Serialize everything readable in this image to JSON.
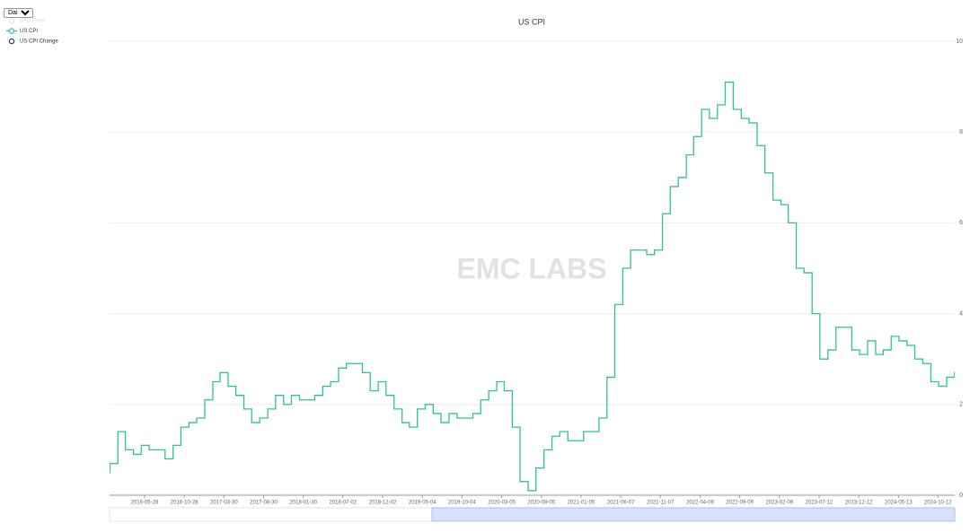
{
  "chart_data": {
    "type": "line",
    "step": true,
    "title": "US CPI",
    "watermark": "EMC LABS",
    "interval": "Daily",
    "legend": [
      {
        "name": "BTC Price",
        "color": "#cccccc",
        "active": false
      },
      {
        "name": "US CPI",
        "color": "#2ec48f",
        "active": true
      },
      {
        "name": "US CPI Change",
        "color": "#1f3a6e",
        "active": true
      }
    ],
    "x": [
      "2015-12-15",
      "2016-01-15",
      "2016-02-15",
      "2016-03-15",
      "2016-04-15",
      "2016-05-15",
      "2016-06-15",
      "2016-07-15",
      "2016-08-15",
      "2016-09-15",
      "2016-10-15",
      "2016-11-15",
      "2016-12-15",
      "2017-01-15",
      "2017-02-15",
      "2017-03-15",
      "2017-04-15",
      "2017-05-15",
      "2017-06-15",
      "2017-07-15",
      "2017-08-15",
      "2017-09-15",
      "2017-10-15",
      "2017-11-15",
      "2017-12-15",
      "2018-01-15",
      "2018-02-15",
      "2018-03-15",
      "2018-04-15",
      "2018-05-15",
      "2018-06-15",
      "2018-07-15",
      "2018-08-15",
      "2018-09-15",
      "2018-10-15",
      "2018-11-15",
      "2018-12-15",
      "2019-01-15",
      "2019-02-15",
      "2019-03-15",
      "2019-04-15",
      "2019-05-15",
      "2019-06-15",
      "2019-07-15",
      "2019-08-15",
      "2019-09-15",
      "2019-10-15",
      "2019-11-15",
      "2019-12-15",
      "2020-01-15",
      "2020-02-15",
      "2020-03-15",
      "2020-04-15",
      "2020-05-15",
      "2020-06-15",
      "2020-07-15",
      "2020-08-15",
      "2020-09-15",
      "2020-10-15",
      "2020-11-15",
      "2020-12-15",
      "2021-01-15",
      "2021-02-15",
      "2021-03-15",
      "2021-04-15",
      "2021-05-15",
      "2021-06-15",
      "2021-07-15",
      "2021-08-15",
      "2021-09-15",
      "2021-10-15",
      "2021-11-15",
      "2021-12-15",
      "2022-01-15",
      "2022-02-15",
      "2022-03-15",
      "2022-04-15",
      "2022-05-15",
      "2022-06-15",
      "2022-07-15",
      "2022-08-15",
      "2022-09-15",
      "2022-10-15",
      "2022-11-15",
      "2022-12-15",
      "2023-01-15",
      "2023-02-15",
      "2023-03-15",
      "2023-04-15",
      "2023-05-15",
      "2023-06-15",
      "2023-07-15",
      "2023-08-15",
      "2023-09-15",
      "2023-10-15",
      "2023-11-15",
      "2023-12-15",
      "2024-01-15",
      "2024-02-15",
      "2024-03-15",
      "2024-04-15",
      "2024-05-15",
      "2024-06-15",
      "2024-07-15",
      "2024-08-15",
      "2024-09-15",
      "2024-10-15",
      "2024-11-15",
      "2024-12-15"
    ],
    "series": [
      {
        "name": "US CPI",
        "color": "#2ec48f",
        "values": [
          0.5,
          0.7,
          1.4,
          1.0,
          0.9,
          1.1,
          1.0,
          1.0,
          0.8,
          1.1,
          1.5,
          1.6,
          1.7,
          2.1,
          2.5,
          2.7,
          2.4,
          2.2,
          1.9,
          1.6,
          1.7,
          1.9,
          2.2,
          2.0,
          2.2,
          2.1,
          2.1,
          2.2,
          2.4,
          2.5,
          2.8,
          2.9,
          2.9,
          2.7,
          2.3,
          2.5,
          2.2,
          1.9,
          1.6,
          1.5,
          1.9,
          2.0,
          1.8,
          1.6,
          1.8,
          1.7,
          1.7,
          1.8,
          2.1,
          2.3,
          2.5,
          2.3,
          1.5,
          0.3,
          0.1,
          0.6,
          1.0,
          1.3,
          1.4,
          1.2,
          1.2,
          1.4,
          1.4,
          1.7,
          2.6,
          4.2,
          5.0,
          5.4,
          5.4,
          5.3,
          5.4,
          6.2,
          6.8,
          7.0,
          7.5,
          7.9,
          8.5,
          8.3,
          8.6,
          9.1,
          8.5,
          8.3,
          8.2,
          7.7,
          7.1,
          6.5,
          6.4,
          6.0,
          5.0,
          4.9,
          4.0,
          3.0,
          3.2,
          3.7,
          3.7,
          3.2,
          3.1,
          3.4,
          3.1,
          3.2,
          3.5,
          3.4,
          3.3,
          3.0,
          2.9,
          2.5,
          2.4,
          2.6,
          2.7
        ]
      }
    ],
    "xlim": [
      "2016-01-14",
      "2024-12-16"
    ],
    "xticks": [
      "2016-05-28",
      "2016-10-28",
      "2017-03-30",
      "2017-08-30",
      "2018-01-30",
      "2018-07-02",
      "2018-12-02",
      "2019-05-04",
      "2019-10-04",
      "2020-03-05",
      "2020-08-05",
      "2021-01-05",
      "2021-06-07",
      "2021-11-07",
      "2022-04-09",
      "2022-09-09",
      "2023-02-09",
      "2023-07-12",
      "2023-12-12",
      "2024-05-13",
      "2024-10-12"
    ],
    "ylim": [
      0,
      10
    ],
    "yticks": [
      0,
      2,
      4,
      6,
      8,
      10
    ],
    "grid": true
  }
}
